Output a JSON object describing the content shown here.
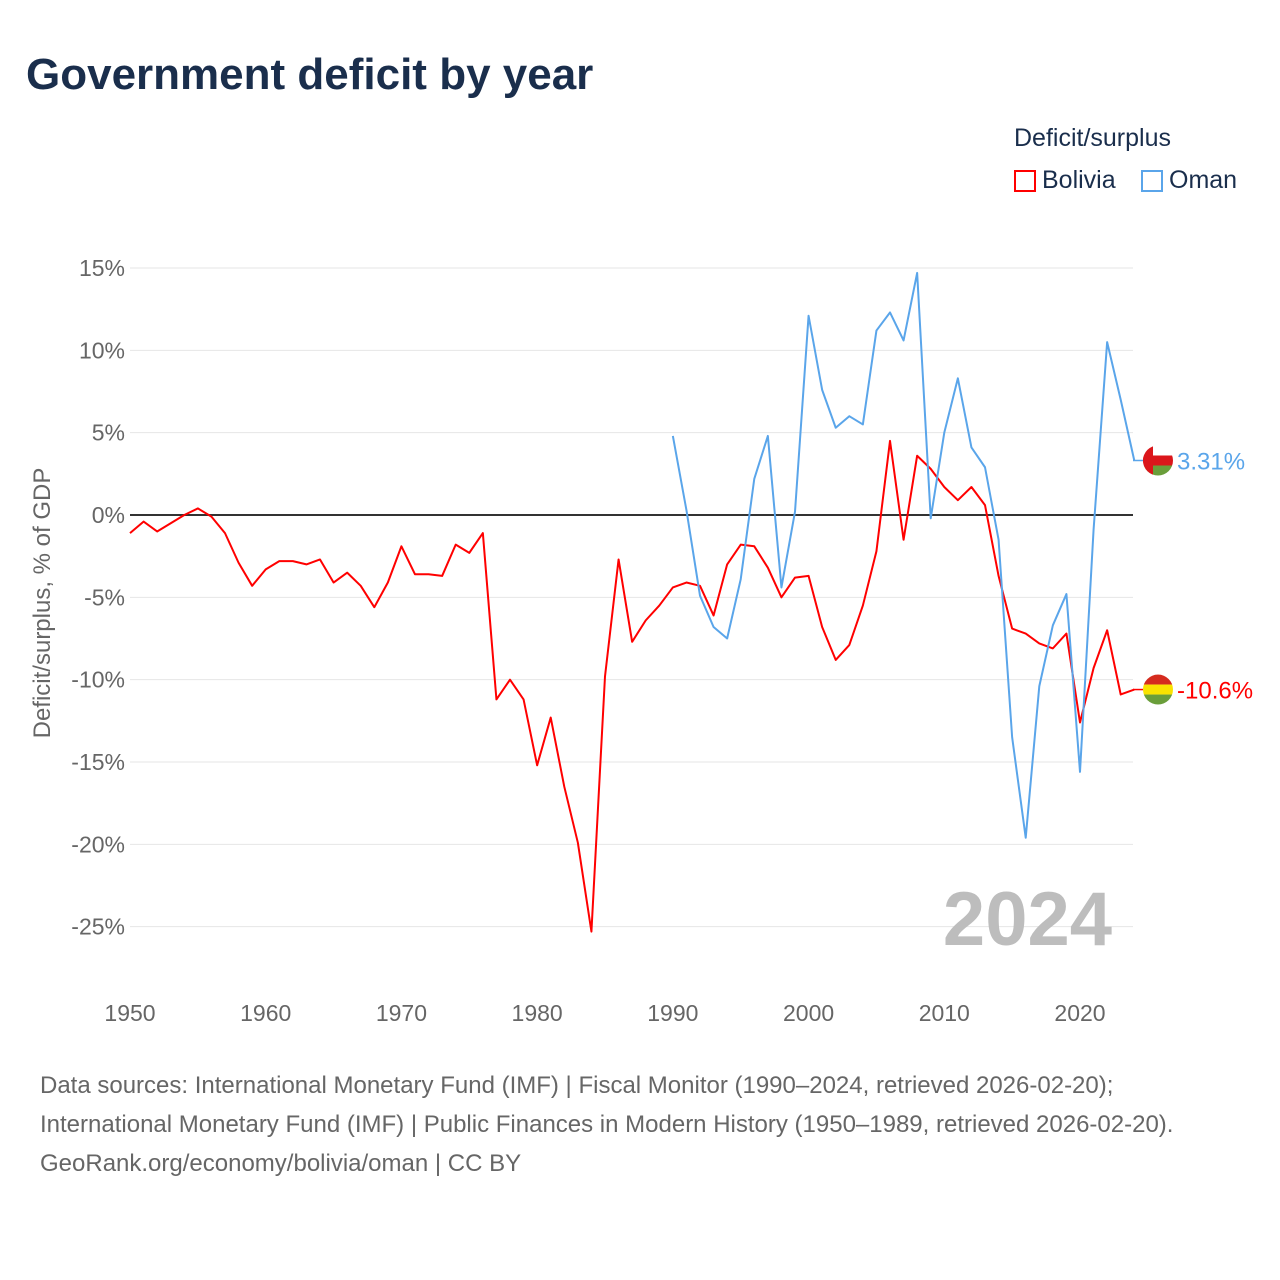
{
  "title": "Government deficit by year",
  "legend": {
    "title": "Deficit/surplus",
    "items": [
      {
        "name": "Bolivia",
        "color": "#ff0000"
      },
      {
        "name": "Oman",
        "color": "#5aa5ea"
      }
    ]
  },
  "footer": {
    "line1": "Data sources: International Monetary Fund (IMF) | Fiscal Monitor (1990–2024, retrieved 2026-02-20); International Monetary Fund (IMF) | Public Finances in Modern History (1950–1989, retrieved 2026-02-20).",
    "line2": "GeoRank.org/economy/bolivia/oman | CC BY"
  },
  "chart_data": {
    "type": "line",
    "title": "Government deficit by year",
    "ylabel": "Deficit/surplus, % of GDP",
    "xlabel": "",
    "xlim": [
      1950,
      2024
    ],
    "ylim": [
      -25,
      15
    ],
    "xticks": [
      "1950",
      "1960",
      "1970",
      "1980",
      "1990",
      "2000",
      "2010",
      "2020"
    ],
    "yticks": [
      "15%",
      "10%",
      "5%",
      "0%",
      "-5%",
      "-10%",
      "-15%",
      "-20%",
      "-25%"
    ],
    "year_label": "2024",
    "series": [
      {
        "name": "Bolivia",
        "color": "#ff0000",
        "start": 1950,
        "end_label": "-10.6%",
        "values": [
          -1.1,
          -0.4,
          -1.0,
          -0.5,
          0.0,
          0.4,
          -0.1,
          -1.1,
          -2.9,
          -4.3,
          -3.3,
          -2.8,
          -2.8,
          -3.0,
          -2.7,
          -4.1,
          -3.5,
          -4.3,
          -5.6,
          -4.1,
          -1.9,
          -3.6,
          -3.6,
          -3.7,
          -1.8,
          -2.3,
          -1.1,
          -11.2,
          -10.0,
          -11.2,
          -15.2,
          -12.3,
          -16.5,
          -19.9,
          -25.3,
          -9.8,
          -2.7,
          -7.7,
          -6.4,
          -5.5,
          -4.4,
          -4.1,
          -4.3,
          -6.1,
          -3.0,
          -1.8,
          -1.9,
          -3.2,
          -5.0,
          -3.8,
          -3.7,
          -6.8,
          -8.8,
          -7.9,
          -5.5,
          -2.2,
          4.5,
          -1.5,
          3.6,
          2.8,
          1.7,
          0.9,
          1.7,
          0.6,
          -3.7,
          -6.9,
          -7.2,
          -7.8,
          -8.1,
          -7.2,
          -12.6,
          -9.3,
          -7.0,
          -10.9,
          -10.6
        ]
      },
      {
        "name": "Oman",
        "color": "#5aa5ea",
        "start": 1990,
        "end_label": "3.31%",
        "values": [
          4.8,
          0.3,
          -4.9,
          -6.8,
          -7.5,
          -3.9,
          2.2,
          4.8,
          -4.4,
          0.2,
          12.1,
          7.6,
          5.3,
          6.0,
          5.5,
          11.2,
          12.3,
          10.6,
          14.7,
          -0.2,
          5.0,
          8.3,
          4.1,
          2.9,
          -1.5,
          -13.5,
          -19.6,
          -10.4,
          -6.7,
          -4.8,
          -15.6,
          -0.9,
          10.5,
          7.0,
          3.31
        ]
      }
    ]
  }
}
